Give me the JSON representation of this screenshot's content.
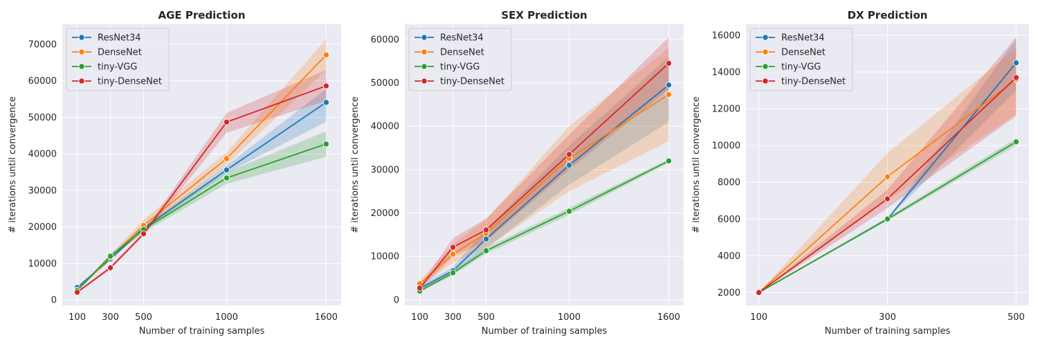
{
  "colors": {
    "background": "#eaeaf2",
    "grid": "#ffffff",
    "ResNet34": "#1f77b4",
    "DenseNet": "#ff7f0e",
    "tiny-VGG": "#2ca02c",
    "tiny-DenseNet": "#d62728"
  },
  "chart_data": [
    {
      "type": "line",
      "title": "AGE Prediction",
      "xlabel": "Number of training samples",
      "ylabel": "# iterations until convergence",
      "x": [
        100,
        300,
        500,
        1000,
        1600
      ],
      "xticks": [
        "100",
        "300",
        "500",
        "1000",
        "1600"
      ],
      "yticks": [
        "0",
        "10000",
        "20000",
        "30000",
        "40000",
        "50000",
        "60000",
        "70000"
      ],
      "xlim": [
        10,
        1690
      ],
      "ylim": [
        -1500,
        75500
      ],
      "grid": true,
      "legend": "top-left",
      "series": [
        {
          "name": "ResNet34",
          "values": [
            3400,
            11200,
            19600,
            35600,
            54100
          ],
          "lower": [
            3100,
            10800,
            19000,
            34800,
            48800
          ],
          "upper": [
            3700,
            11600,
            20200,
            36800,
            57800
          ]
        },
        {
          "name": "DenseNet",
          "values": [
            2700,
            11700,
            20400,
            38700,
            67100
          ],
          "lower": [
            2300,
            11000,
            18800,
            37000,
            63000
          ],
          "upper": [
            3100,
            12500,
            22000,
            40400,
            71500
          ]
        },
        {
          "name": "tiny-VGG",
          "values": [
            2600,
            12000,
            19300,
            33400,
            42700
          ],
          "lower": [
            2300,
            11500,
            18500,
            31800,
            39200
          ],
          "upper": [
            2900,
            12500,
            20100,
            35000,
            46200
          ]
        },
        {
          "name": "tiny-DenseNet",
          "values": [
            2100,
            8800,
            18100,
            48700,
            58600
          ],
          "lower": [
            1800,
            8300,
            17500,
            45800,
            54500
          ],
          "upper": [
            2400,
            9300,
            18700,
            51200,
            63000
          ]
        }
      ]
    },
    {
      "type": "line",
      "title": "SEX Prediction",
      "xlabel": "Number of training samples",
      "ylabel": "# iterations until convergence",
      "x": [
        100,
        300,
        500,
        1000,
        1600
      ],
      "xticks": [
        "100",
        "300",
        "500",
        "1000",
        "1600"
      ],
      "yticks": [
        "0",
        "10000",
        "20000",
        "30000",
        "40000",
        "50000",
        "60000"
      ],
      "xlim": [
        10,
        1690
      ],
      "ylim": [
        -1300,
        63500
      ],
      "grid": true,
      "legend": "top-left",
      "series": [
        {
          "name": "ResNet34",
          "values": [
            2600,
            6700,
            14000,
            31000,
            49500
          ],
          "lower": [
            2100,
            5800,
            11800,
            26500,
            41000
          ],
          "upper": [
            3100,
            7600,
            16200,
            35500,
            56000
          ]
        },
        {
          "name": "DenseNet",
          "values": [
            3700,
            10500,
            15300,
            32600,
            47300
          ],
          "lower": [
            3000,
            8500,
            12000,
            25000,
            36500
          ],
          "upper": [
            4400,
            12800,
            18500,
            40000,
            58000
          ]
        },
        {
          "name": "tiny-VGG",
          "values": [
            2000,
            6200,
            11300,
            20400,
            32000
          ],
          "lower": [
            1700,
            5700,
            10600,
            19600,
            31600
          ],
          "upper": [
            2300,
            6700,
            12000,
            21200,
            32400
          ]
        },
        {
          "name": "tiny-DenseNet",
          "values": [
            2700,
            12100,
            16100,
            33500,
            54500
          ],
          "lower": [
            2200,
            10000,
            13500,
            30000,
            48500
          ],
          "upper": [
            3200,
            14200,
            18700,
            38000,
            60500
          ]
        }
      ]
    },
    {
      "type": "line",
      "title": "DX Prediction",
      "xlabel": "Number of training samples",
      "ylabel": "# iterations until convergence",
      "x": [
        100,
        300,
        500
      ],
      "xticks": [
        "100",
        "300",
        "500"
      ],
      "yticks": [
        "2000",
        "4000",
        "6000",
        "8000",
        "10000",
        "12000",
        "14000",
        "16000"
      ],
      "xlim": [
        80,
        520
      ],
      "ylim": [
        1300,
        16600
      ],
      "grid": true,
      "legend": "top-left",
      "series": [
        {
          "name": "ResNet34",
          "values": [
            2000,
            6000,
            14500
          ],
          "lower": [
            2000,
            6000,
            13000
          ],
          "upper": [
            2000,
            6000,
            15800
          ]
        },
        {
          "name": "DenseNet",
          "values": [
            2000,
            8300,
            13600
          ],
          "lower": [
            2000,
            7000,
            11700
          ],
          "upper": [
            2000,
            9600,
            15300
          ]
        },
        {
          "name": "tiny-VGG",
          "values": [
            2000,
            6000,
            10200
          ],
          "lower": [
            2000,
            5900,
            10000
          ],
          "upper": [
            2000,
            6100,
            10400
          ]
        },
        {
          "name": "tiny-DenseNet",
          "values": [
            2000,
            7100,
            13700
          ],
          "lower": [
            2000,
            6600,
            11600
          ],
          "upper": [
            2000,
            7600,
            15900
          ]
        }
      ]
    }
  ]
}
